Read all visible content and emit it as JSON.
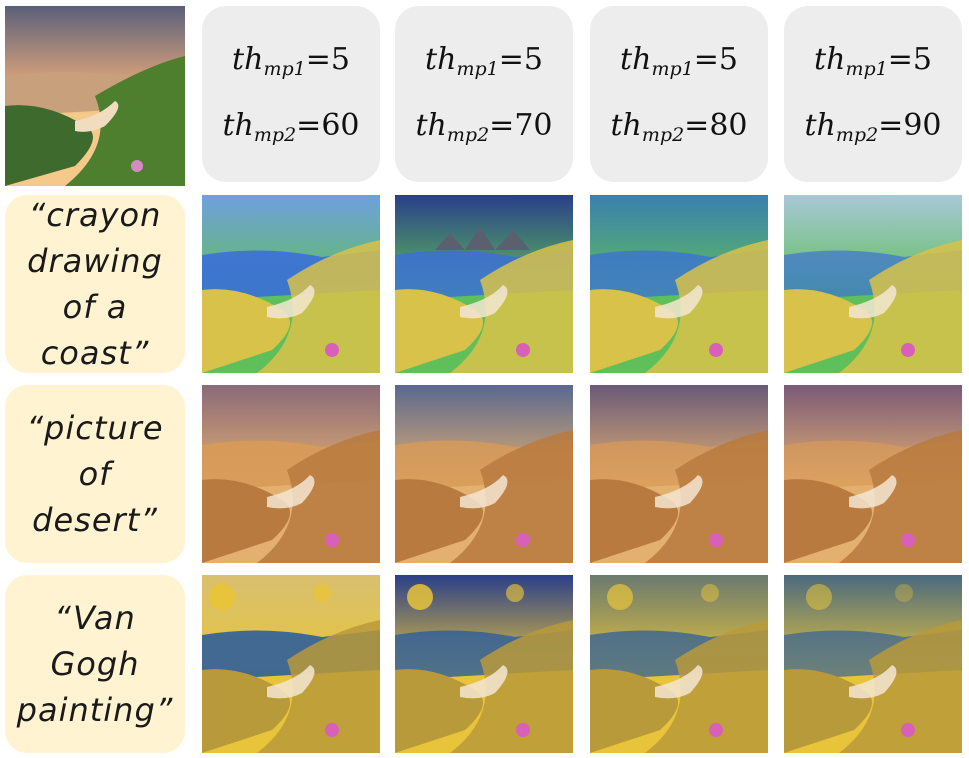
{
  "columns": [
    {
      "th1": "5",
      "th2": "60"
    },
    {
      "th1": "5",
      "th2": "70"
    },
    {
      "th1": "5",
      "th2": "80"
    },
    {
      "th1": "5",
      "th2": "90"
    }
  ],
  "param_symbol": "th",
  "param1_sub": "mp1",
  "param2_sub": "mp2",
  "prompts": [
    "“crayon\ndrawing\nof a\ncoast”",
    "“picture\nof\ndesert”",
    "“Van\nGogh\npainting”"
  ],
  "styles": {
    "source": {
      "sky": "#c99a78",
      "sea": "#d89c6a",
      "land": "#3d6b2a",
      "accent": "#f5c46a"
    },
    "crayon": {
      "sky": "#4a7fd0",
      "sea": "#3a6fd8",
      "land": "#d8c24a",
      "accent": "#5fbf5a"
    },
    "desert": {
      "sky": "#8a6a78",
      "sea": "#d89a58",
      "land": "#b87a3e",
      "accent": "#e4b070"
    },
    "vangogh": {
      "sky": "#5a7a9a",
      "sea": "#2f5f9a",
      "land": "#b89a3a",
      "accent": "#e8c43a"
    }
  }
}
